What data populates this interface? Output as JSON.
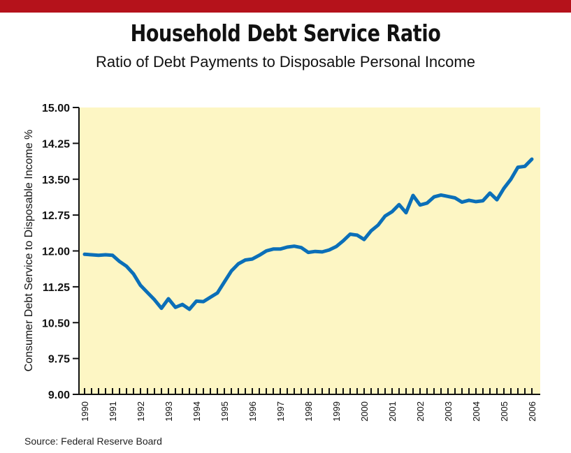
{
  "header": {
    "accent_color": "#b5121b"
  },
  "chart_data": {
    "type": "line",
    "title": "Household Debt Service Ratio",
    "subtitle": "Ratio of Debt Payments to Disposable Personal Income",
    "ylabel": "Consumer Debt Service to Disposable Income %",
    "xlabel": "",
    "source": "Source: Federal Reserve Board",
    "ylim": [
      9.0,
      15.0
    ],
    "y_ticks": [
      "15.00",
      "14.25",
      "13.50",
      "12.75",
      "12.00",
      "11.25",
      "10.50",
      "9.75",
      "9.00"
    ],
    "x_tick_labels": [
      "1990",
      "1991",
      "1992",
      "1993",
      "1994",
      "1995",
      "1996",
      "1997",
      "1998",
      "1999",
      "2000",
      "2001",
      "2002",
      "2003",
      "2004",
      "2005",
      "2006"
    ],
    "plot_background": "#fdf6c4",
    "line_color": "#0b6fb8",
    "series": [
      {
        "x": [
          1990.0,
          1990.25,
          1990.5,
          1990.75,
          1991.0,
          1991.25,
          1991.5,
          1991.75,
          1992.0,
          1992.25,
          1992.5,
          1992.75,
          1993.0,
          1993.25,
          1993.5,
          1993.75,
          1994.0,
          1994.25,
          1994.5,
          1994.75,
          1995.0,
          1995.25,
          1995.5,
          1995.75,
          1996.0,
          1996.25,
          1996.5,
          1996.75,
          1997.0,
          1997.25,
          1997.5,
          1997.75,
          1998.0,
          1998.25,
          1998.5,
          1998.75,
          1999.0,
          1999.25,
          1999.5,
          1999.75,
          2000.0,
          2000.25,
          2000.5,
          2000.75,
          2001.0,
          2001.25,
          2001.5,
          2001.75,
          2002.0,
          2002.25,
          2002.5,
          2002.75,
          2003.0,
          2003.25,
          2003.5,
          2003.75,
          2004.0,
          2004.25,
          2004.5,
          2004.75,
          2005.0,
          2005.25,
          2005.5,
          2005.75,
          2006.0
        ],
        "values": [
          11.93,
          11.92,
          11.91,
          11.92,
          11.91,
          11.78,
          11.68,
          11.52,
          11.28,
          11.13,
          10.98,
          10.8,
          11.0,
          10.82,
          10.88,
          10.78,
          10.95,
          10.94,
          11.03,
          11.12,
          11.35,
          11.58,
          11.73,
          11.81,
          11.83,
          11.91,
          12.0,
          12.04,
          12.04,
          12.08,
          12.1,
          12.07,
          11.97,
          11.99,
          11.98,
          12.02,
          12.09,
          12.21,
          12.35,
          12.33,
          12.24,
          12.42,
          12.54,
          12.73,
          12.82,
          12.97,
          12.8,
          13.16,
          12.96,
          13.0,
          13.13,
          13.17,
          13.14,
          13.11,
          13.02,
          13.06,
          13.03,
          13.05,
          13.21,
          13.07,
          13.31,
          13.5,
          13.75,
          13.77,
          13.92
        ]
      }
    ]
  }
}
